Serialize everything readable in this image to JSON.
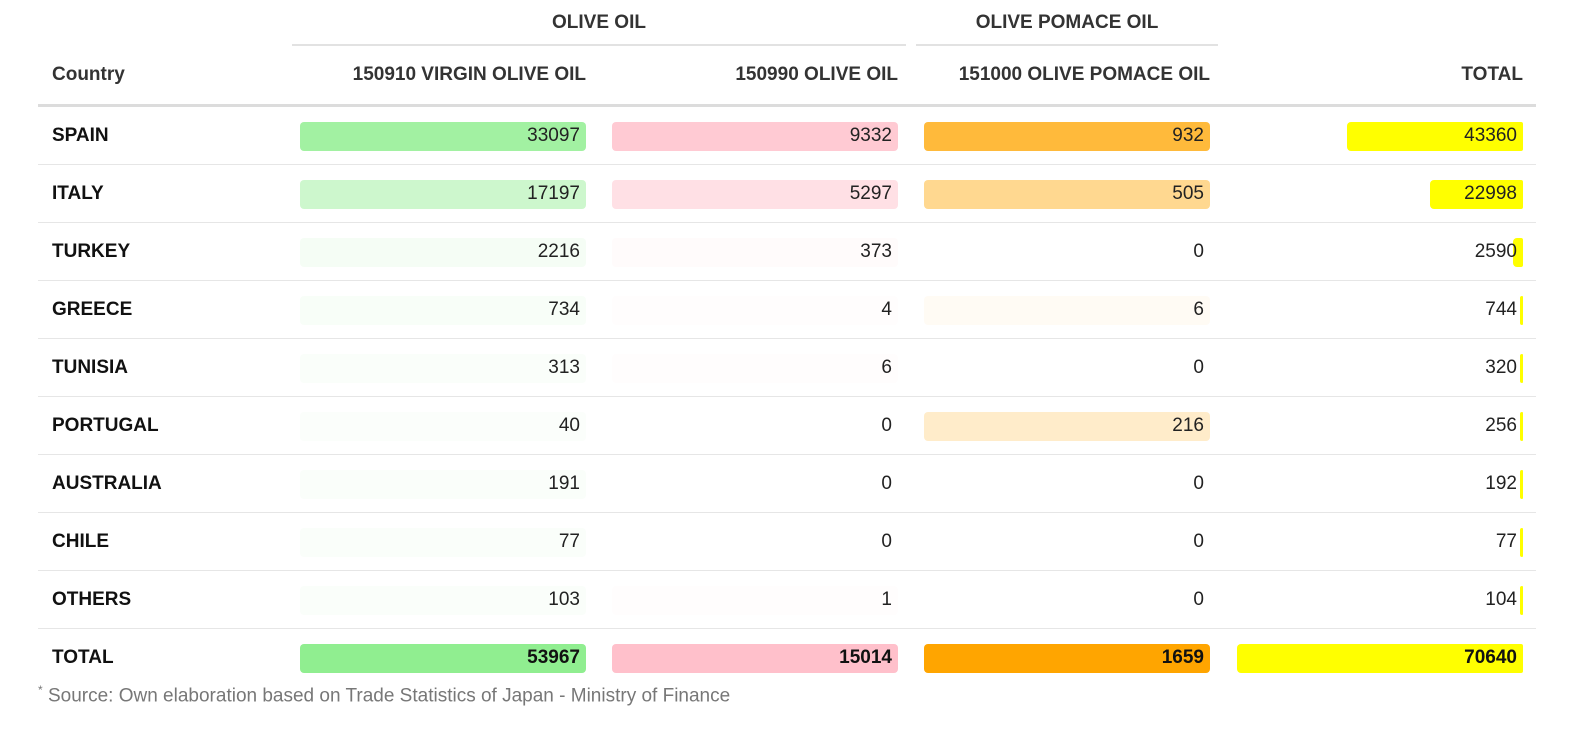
{
  "header": {
    "groups": {
      "olive_oil": "OLIVE OIL",
      "olive_pomace_oil": "OLIVE POMACE OIL"
    },
    "columns": {
      "country": "Country",
      "c1": "150910 VIRGIN OLIVE OIL",
      "c2": "150990 OLIVE OIL",
      "c3": "151000 OLIVE POMACE OIL",
      "total": "TOTAL"
    }
  },
  "colors": {
    "c1": "#90ee90",
    "c2": "#ffc0cb",
    "c3": "#ffa500",
    "total": "#ffff00"
  },
  "chart_data": {
    "type": "table",
    "columns": [
      "Country",
      "150910 VIRGIN OLIVE OIL",
      "150990 OLIVE OIL",
      "151000 OLIVE POMACE OIL",
      "TOTAL"
    ],
    "rows": [
      {
        "country": "SPAIN",
        "c1": 33097,
        "c2": 9332,
        "c3": 932,
        "total": 43360
      },
      {
        "country": "ITALY",
        "c1": 17197,
        "c2": 5297,
        "c3": 505,
        "total": 22998
      },
      {
        "country": "TURKEY",
        "c1": 2216,
        "c2": 373,
        "c3": 0,
        "total": 2590
      },
      {
        "country": "GREECE",
        "c1": 734,
        "c2": 4,
        "c3": 6,
        "total": 744
      },
      {
        "country": "TUNISIA",
        "c1": 313,
        "c2": 6,
        "c3": 0,
        "total": 320
      },
      {
        "country": "PORTUGAL",
        "c1": 40,
        "c2": 0,
        "c3": 216,
        "total": 256
      },
      {
        "country": "AUSTRALIA",
        "c1": 191,
        "c2": 0,
        "c3": 0,
        "total": 192
      },
      {
        "country": "CHILE",
        "c1": 77,
        "c2": 0,
        "c3": 0,
        "total": 77
      },
      {
        "country": "OTHERS",
        "c1": 103,
        "c2": 1,
        "c3": 0,
        "total": 104
      }
    ],
    "totals": {
      "label": "TOTAL",
      "c1": 53967,
      "c2": 15014,
      "c3": 1659,
      "total": 70640
    }
  },
  "footnote": {
    "marker": "*",
    "text": " Source: Own elaboration based on Trade Statistics of Japan - Ministry of Finance"
  }
}
